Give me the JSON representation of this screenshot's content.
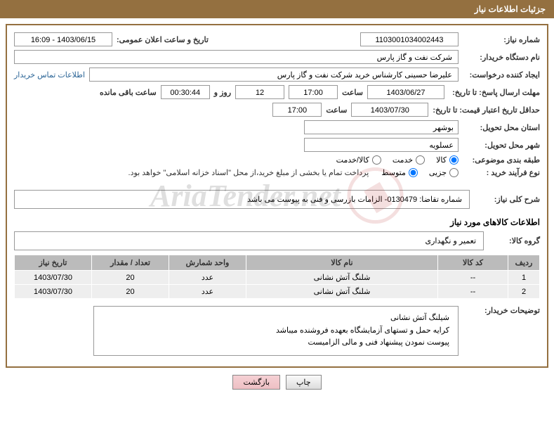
{
  "header": {
    "title": "جزئیات اطلاعات نیاز"
  },
  "form": {
    "need_no_label": "شماره نیاز:",
    "need_no": "1103001034002443",
    "announce_label": "تاریخ و ساعت اعلان عمومی:",
    "announce_value": "1403/06/15 - 16:09",
    "buyer_org_label": "نام دستگاه خریدار:",
    "buyer_org": "شرکت نفت و گاز پارس",
    "requester_label": "ایجاد کننده درخواست:",
    "requester": "علیرضا حسینی کارشناس خرید شرکت نفت و گاز پارس",
    "contact_link": "اطلاعات تماس خریدار",
    "deadline_label": "مهلت ارسال پاسخ: تا تاریخ:",
    "deadline_date": "1403/06/27",
    "time_label": "ساعت",
    "deadline_time": "17:00",
    "days_remaining": "12",
    "days_word": "روز و",
    "time_remaining": "00:30:44",
    "remaining_label": "ساعت باقی مانده",
    "validity_label": "حداقل تاریخ اعتبار قیمت: تا تاریخ:",
    "validity_date": "1403/07/30",
    "validity_time": "17:00",
    "province_label": "استان محل تحویل:",
    "province": "بوشهر",
    "city_label": "شهر محل تحویل:",
    "city": "عسلویه",
    "category_label": "طبقه بندی موضوعی:",
    "cat_goods": "کالا",
    "cat_service": "خدمت",
    "cat_goods_service": "کالا/خدمت",
    "process_label": "نوع فرآیند خرید :",
    "proc_minor": "جزیی",
    "proc_medium": "متوسط",
    "payment_note": "پرداخت تمام یا بخشی از مبلغ خرید،از محل \"اسناد خزانه اسلامی\" خواهد بود."
  },
  "sections": {
    "desc_label": "شرح کلی نیاز:",
    "desc_text": "شماره تقاضا: 0130479- الزامات بازرسی و فنی به پیوست می باشد",
    "goods_info_title": "اطلاعات کالاهای مورد نیاز",
    "group_label": "گروه کالا:",
    "group_value": "تعمیر و نگهداری"
  },
  "table": {
    "columns": [
      "ردیف",
      "کد کالا",
      "نام کالا",
      "واحد شمارش",
      "تعداد / مقدار",
      "تاریخ نیاز"
    ],
    "rows": [
      [
        "1",
        "--",
        "شلنگ آتش نشانی",
        "عدد",
        "20",
        "1403/07/30"
      ],
      [
        "2",
        "--",
        "شلنگ آتش نشانی",
        "عدد",
        "20",
        "1403/07/30"
      ]
    ]
  },
  "buyer_notes": {
    "label": "توضیحات خریدار:",
    "line1": "شیلنگ آتش نشانی",
    "line2": "کرایه حمل و تستهای آزمایشگاه بعهده فروشنده میباشد",
    "line3": "پیوست نمودن پیشنهاد فنی و مالی الزامیست"
  },
  "buttons": {
    "print": "چاپ",
    "back": "بازگشت"
  },
  "watermark": "AriaTender.net"
}
